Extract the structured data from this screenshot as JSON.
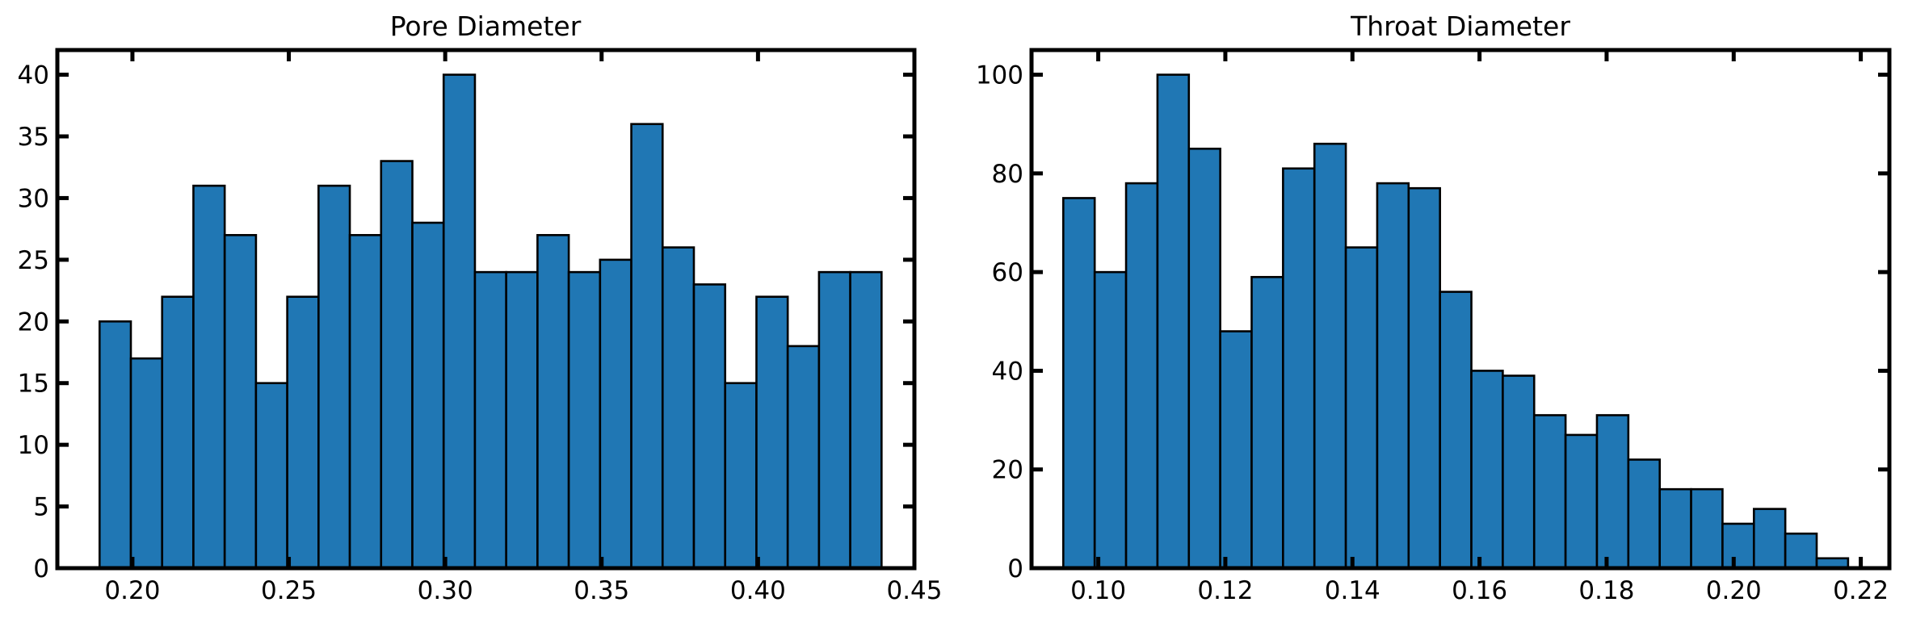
{
  "colors": {
    "bar_fill": "#2077b4",
    "bar_edge": "#000000",
    "axes": "#000000"
  },
  "chart_data": [
    {
      "type": "bar",
      "subtype": "histogram",
      "title": "Pore Diameter",
      "xlabel": "",
      "ylabel": "",
      "bin_start": 0.1895,
      "bin_width": 0.01,
      "values": [
        20,
        17,
        22,
        31,
        27,
        15,
        22,
        31,
        27,
        33,
        28,
        40,
        24,
        24,
        27,
        24,
        25,
        36,
        26,
        23,
        15,
        22,
        18,
        24,
        24
      ],
      "xlim": [
        0.176,
        0.45
      ],
      "ylim": [
        0,
        42
      ],
      "xticks": [
        0.2,
        0.25,
        0.3,
        0.35,
        0.4,
        0.45
      ],
      "xtick_labels": [
        "0.20",
        "0.25",
        "0.30",
        "0.35",
        "0.40",
        "0.45"
      ],
      "yticks": [
        0,
        5,
        10,
        15,
        20,
        25,
        30,
        35,
        40
      ],
      "ytick_labels": [
        "0",
        "5",
        "10",
        "15",
        "20",
        "25",
        "30",
        "35",
        "40"
      ],
      "grid": false
    },
    {
      "type": "bar",
      "subtype": "histogram",
      "title": "Throat Diameter",
      "xlabel": "",
      "ylabel": "",
      "bin_start": 0.0945,
      "bin_width": 0.00494,
      "values": [
        75,
        60,
        78,
        100,
        85,
        48,
        59,
        81,
        86,
        65,
        78,
        77,
        56,
        40,
        39,
        31,
        27,
        31,
        22,
        16,
        16,
        9,
        12,
        7,
        2
      ],
      "xlim": [
        0.0895,
        0.2245
      ],
      "ylim": [
        0,
        105
      ],
      "xticks": [
        0.1,
        0.12,
        0.14,
        0.16,
        0.18,
        0.2,
        0.22
      ],
      "xtick_labels": [
        "0.10",
        "0.12",
        "0.14",
        "0.16",
        "0.18",
        "0.20",
        "0.22"
      ],
      "yticks": [
        0,
        20,
        40,
        60,
        80,
        100
      ],
      "ytick_labels": [
        "0",
        "20",
        "40",
        "60",
        "80",
        "100"
      ],
      "grid": false
    }
  ]
}
